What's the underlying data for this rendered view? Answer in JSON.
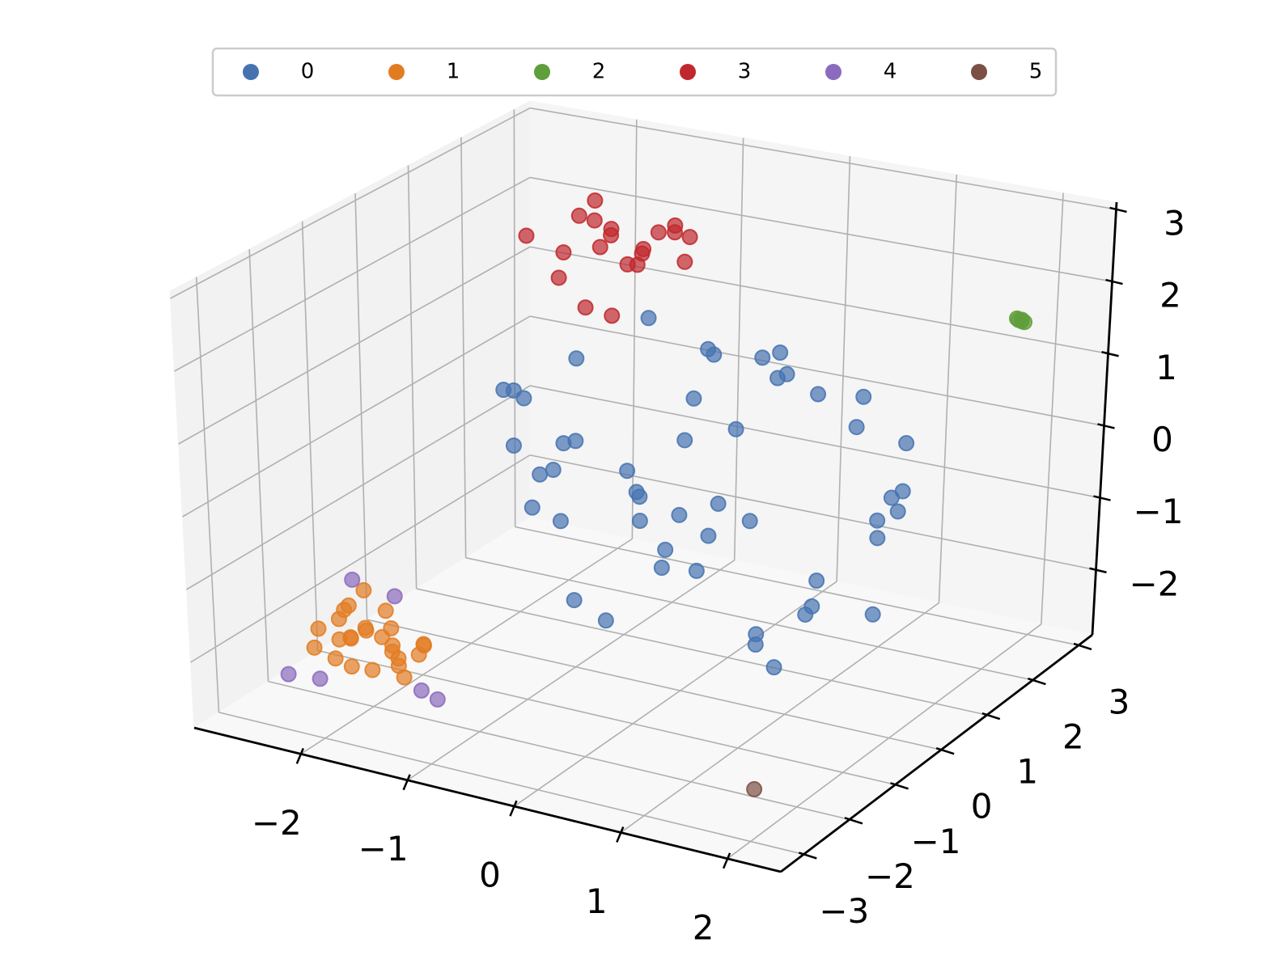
{
  "chart_data": {
    "type": "scatter3d",
    "xlim": [
      -3,
      2.5
    ],
    "ylim": [
      -3.5,
      3.3
    ],
    "zlim": [
      -2.9,
      3.1
    ],
    "xticks": [
      {
        "value": -2,
        "label": "−2"
      },
      {
        "value": -1,
        "label": "−1"
      },
      0,
      1,
      2
    ],
    "yticks": [
      {
        "value": -3,
        "label": "−3"
      },
      {
        "value": -2,
        "label": "−2"
      },
      {
        "value": -1,
        "label": "−1"
      },
      0,
      1,
      2,
      3
    ],
    "zticks": [
      {
        "value": -2,
        "label": "−2"
      },
      {
        "value": -1,
        "label": "−1"
      },
      0,
      1,
      2,
      3
    ],
    "grid": true,
    "legend": "top",
    "series": [
      {
        "name": "0",
        "color": "#4673b0",
        "x": [
          -1.6,
          -1.2,
          -0.8,
          -0.4,
          0.0,
          0.4,
          0.8,
          1.2,
          1.6,
          -1.4,
          -0.9,
          -0.3,
          0.3,
          0.9,
          1.4,
          -1.7,
          -1.0,
          -0.2,
          0.5,
          1.1,
          1.7,
          -1.3,
          -0.6,
          0.1,
          0.7,
          1.3,
          -1.5,
          -0.7,
          0.2,
          1.0,
          1.5,
          -1.1,
          -0.5,
          0.6,
          1.2,
          -0.9,
          0.0,
          0.9,
          -1.8,
          1.8,
          -0.3,
          0.4,
          -1.2,
          1.1,
          0.2,
          -0.6,
          0.8,
          -1.5,
          1.4,
          0.0
        ],
        "y": [
          0.3,
          1.5,
          -0.8,
          2.0,
          0.6,
          -1.2,
          1.1,
          0.0,
          0.9,
          -0.5,
          2.2,
          1.0,
          -1.4,
          1.8,
          -0.3,
          0.8,
          0.1,
          2.4,
          0.5,
          -0.9,
          0.4,
          1.9,
          -1.0,
          -0.2,
          2.1,
          1.2,
          -0.1,
          0.7,
          1.6,
          -0.6,
          1.4,
          0.2,
          -1.3,
          0.9,
          2.0,
          1.3,
          -1.5,
          0.0,
          0.5,
          0.6,
          2.3,
          -0.7,
          -0.4,
          1.7,
          0.3,
          1.0,
          -1.1,
          1.1,
          -0.2,
          0.8
        ],
        "z": [
          0.5,
          -0.9,
          0.2,
          -0.3,
          1.5,
          -0.6,
          0.9,
          -1.5,
          -0.2,
          1.0,
          -0.1,
          -1.8,
          0.4,
          0.6,
          -1.2,
          -0.8,
          1.3,
          0.3,
          -2.2,
          0.1,
          -0.5,
          -1.4,
          0.7,
          -0.4,
          0.0,
          -2.0,
          0.8,
          -1.1,
          1.1,
          -1.7,
          0.3,
          -2.1,
          -0.2,
          1.2,
          -0.7,
          1.4,
          -1.3,
          -2.3,
          -0.3,
          -0.2,
          0.6,
          0.9,
          -0.6,
          -1.0,
          1.6,
          -1.6,
          -0.1,
          -0.4,
          -0.9,
          -0.7
        ]
      },
      {
        "name": "1",
        "color": "#e27c23",
        "x": [
          -2.5,
          -2.3,
          -2.1,
          -1.9,
          -1.7,
          -1.5,
          -2.4,
          -2.2,
          -2.0,
          -1.8,
          -1.6,
          -2.3,
          -2.1,
          -1.9,
          -1.7,
          -2.4,
          -2.0,
          -1.6,
          -2.2,
          -1.8,
          -2.0,
          -2.1,
          -1.9,
          -2.3,
          -1.7
        ],
        "y": [
          -2.0,
          -1.8,
          -2.2,
          -1.9,
          -2.1,
          -2.0,
          -2.3,
          -1.7,
          -2.0,
          -2.2,
          -1.8,
          -2.1,
          -1.9,
          -2.3,
          -2.0,
          -1.8,
          -2.4,
          -1.9,
          -2.1,
          -2.0,
          -1.6,
          -2.2,
          -1.8,
          -2.0,
          -2.1
        ],
        "z": [
          -2.0,
          -1.7,
          -2.3,
          -1.6,
          -2.2,
          -1.9,
          -2.1,
          -1.5,
          -2.4,
          -1.8,
          -2.0,
          -2.3,
          -1.9,
          -1.7,
          -2.4,
          -2.2,
          -1.8,
          -2.1,
          -1.6,
          -2.0,
          -2.0,
          -1.9,
          -2.2,
          -1.8,
          -2.1
        ]
      },
      {
        "name": "2",
        "color": "#5f9e3a",
        "x": [
          1.78,
          1.82,
          1.8,
          1.76,
          1.84
        ],
        "y": [
          3.0,
          2.98,
          3.02,
          3.01,
          2.99
        ],
        "z": [
          1.4,
          1.42,
          1.38,
          1.41,
          1.39
        ]
      },
      {
        "name": "3",
        "color": "#c0282d",
        "x": [
          -1.9,
          -1.6,
          -1.2,
          -0.9,
          -1.5,
          -1.0,
          -1.4,
          -0.8,
          -1.7,
          -1.1,
          -1.3,
          -0.7,
          -1.8,
          -1.2,
          -0.9,
          -1.5,
          -1.0,
          -1.6,
          -1.1,
          -1.4
        ],
        "y": [
          1.0,
          1.8,
          1.2,
          2.0,
          1.5,
          1.1,
          2.2,
          1.6,
          1.3,
          1.9,
          0.9,
          1.4,
          2.1,
          1.7,
          1.2,
          0.8,
          2.3,
          1.4,
          1.0,
          1.6
        ],
        "z": [
          2.4,
          2.0,
          2.6,
          1.9,
          2.8,
          2.2,
          1.8,
          2.5,
          2.1,
          2.3,
          1.6,
          2.7,
          2.2,
          1.9,
          2.4,
          2.0,
          2.1,
          2.6,
          1.5,
          2.3
        ]
      },
      {
        "name": "4",
        "color": "#8b6bbd",
        "x": [
          -2.5,
          -2.1,
          -2.9,
          -2.6,
          -1.35,
          -1.2
        ],
        "y": [
          -1.3,
          -1.3,
          -1.8,
          -1.8,
          -2.4,
          -2.4
        ],
        "z": [
          -1.62,
          -1.72,
          -2.85,
          -2.81,
          -2.29,
          -2.36
        ]
      },
      {
        "name": "5",
        "color": "#7b5045",
        "x": [
          1.6
        ],
        "y": [
          -2.0
        ],
        "z": [
          -2.8
        ]
      }
    ]
  }
}
